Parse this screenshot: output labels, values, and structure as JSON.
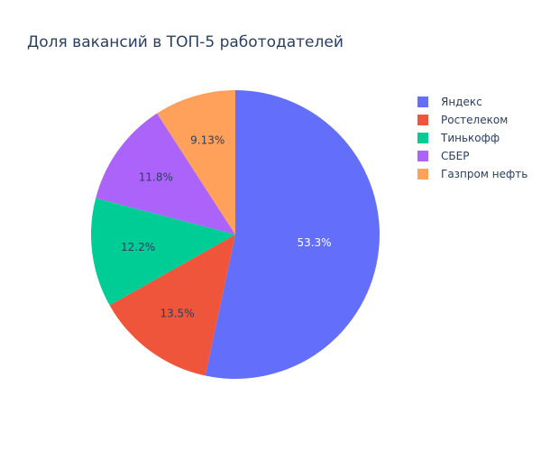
{
  "chart_data": {
    "type": "pie",
    "title": "Доля вакансий в ТОП-5 работодателей",
    "categories": [
      "Яндекс",
      "Ростелеком",
      "Тинькофф",
      "СБЕР",
      "Газпром нефть"
    ],
    "values": [
      53.3,
      13.5,
      12.2,
      11.8,
      9.13
    ],
    "labels": [
      "53.3%",
      "13.5%",
      "12.2%",
      "11.8%",
      "9.13%"
    ],
    "colors": [
      "#636efa",
      "#EF553B",
      "#00cc96",
      "#ab63fa",
      "#FFA15A"
    ],
    "label_colors": [
      "#ffffff",
      "#2a3f5f",
      "#2a3f5f",
      "#2a3f5f",
      "#2a3f5f"
    ],
    "legend_position": "top-right",
    "direction": "clockwise",
    "start": "top"
  }
}
